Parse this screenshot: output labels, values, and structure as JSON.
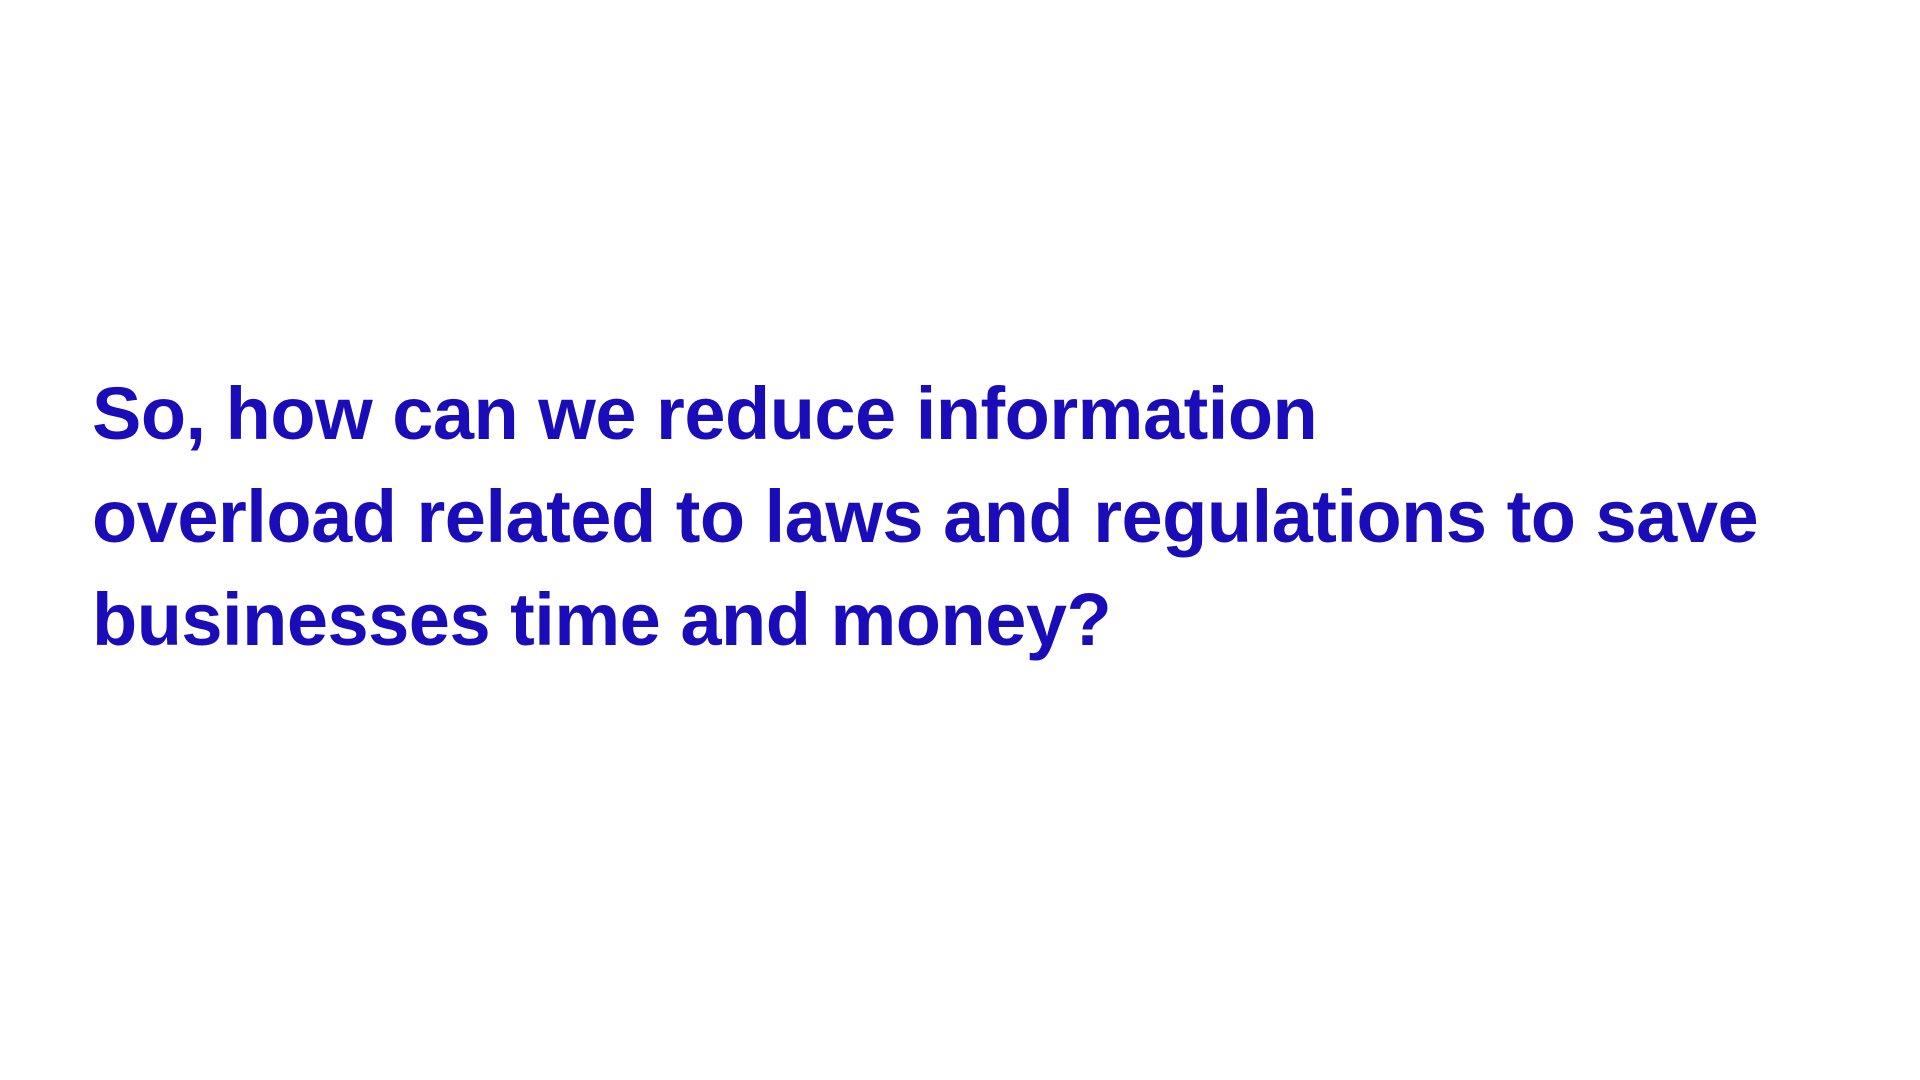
{
  "slide": {
    "text_color": "#1a0cb8",
    "background_color": "#ffffff",
    "question_lines": [
      "So, how can we reduce information",
      "overload related to laws and regulations to save",
      "businesses time and money?"
    ]
  }
}
